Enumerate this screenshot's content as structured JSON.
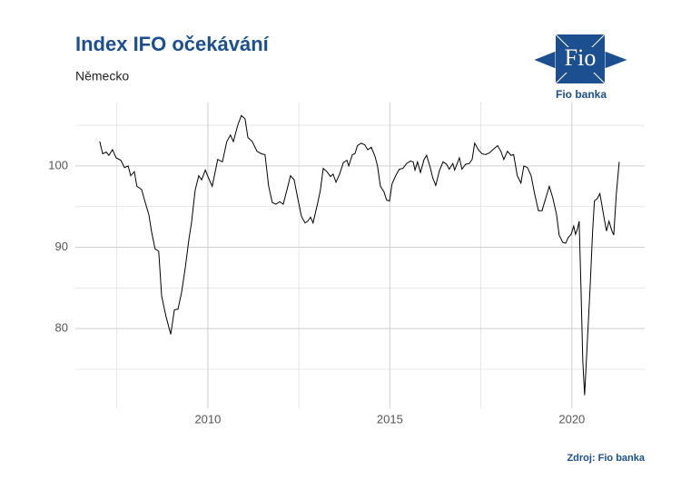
{
  "chart_data": {
    "type": "line",
    "title": "Index IFO očekávání",
    "subtitle": "Německo",
    "source": "Zdroj: Fio banka",
    "xlim": [
      2006.36,
      2022.0
    ],
    "xticks": [
      2010,
      2015,
      2020
    ],
    "xminor": [
      2007.5,
      2012.5,
      2017.5
    ],
    "ylim": [
      70.2,
      107.8
    ],
    "yticks": [
      80,
      90,
      100
    ],
    "yminor": [
      75,
      85,
      95,
      105
    ],
    "grid": true,
    "series": [
      {
        "name": "Index IFO očekávání",
        "color": "#000000",
        "x": [
          2007.03,
          2007.11,
          2007.21,
          2007.28,
          2007.38,
          2007.48,
          2007.61,
          2007.71,
          2007.81,
          2007.88,
          2007.98,
          2008.05,
          2008.18,
          2008.28,
          2008.38,
          2008.45,
          2008.55,
          2008.65,
          2008.73,
          2008.85,
          2008.98,
          2009.08,
          2009.18,
          2009.28,
          2009.38,
          2009.48,
          2009.55,
          2009.65,
          2009.75,
          2009.83,
          2009.93,
          2010.02,
          2010.12,
          2010.27,
          2010.4,
          2010.52,
          2010.62,
          2010.7,
          2010.82,
          2010.92,
          2011.02,
          2011.1,
          2011.22,
          2011.35,
          2011.47,
          2011.57,
          2011.67,
          2011.77,
          2011.87,
          2011.97,
          2012.07,
          2012.17,
          2012.27,
          2012.37,
          2012.47,
          2012.57,
          2012.67,
          2012.74,
          2012.82,
          2012.89,
          2013.02,
          2013.09,
          2013.17,
          2013.27,
          2013.37,
          2013.44,
          2013.52,
          2013.62,
          2013.72,
          2013.82,
          2013.87,
          2013.97,
          2014.04,
          2014.11,
          2014.21,
          2014.31,
          2014.39,
          2014.49,
          2014.59,
          2014.66,
          2014.74,
          2014.84,
          2014.91,
          2014.99,
          2015.06,
          2015.16,
          2015.26,
          2015.36,
          2015.46,
          2015.56,
          2015.64,
          2015.69,
          2015.76,
          2015.84,
          2015.94,
          2016.01,
          2016.11,
          2016.18,
          2016.26,
          2016.36,
          2016.46,
          2016.56,
          2016.63,
          2016.73,
          2016.78,
          2016.91,
          2016.98,
          2017.08,
          2017.18,
          2017.26,
          2017.33,
          2017.43,
          2017.53,
          2017.63,
          2017.73,
          2017.83,
          2017.96,
          2018.05,
          2018.13,
          2018.23,
          2018.33,
          2018.4,
          2018.5,
          2018.6,
          2018.68,
          2018.78,
          2018.88,
          2018.98,
          2019.08,
          2019.18,
          2019.28,
          2019.38,
          2019.48,
          2019.58,
          2019.65,
          2019.75,
          2019.83,
          2019.9,
          2019.98,
          2020.05,
          2020.1,
          2020.15,
          2020.2,
          2020.25,
          2020.3,
          2020.35,
          2020.42,
          2020.5,
          2020.57,
          2020.62,
          2020.7,
          2020.77,
          2020.87,
          2020.95,
          2021.02,
          2021.1,
          2021.15,
          2021.22,
          2021.3
        ],
        "values": [
          103.0,
          101.5,
          101.7,
          101.3,
          102.0,
          101.0,
          100.7,
          99.8,
          100.0,
          98.8,
          99.3,
          97.5,
          97.1,
          95.5,
          94.0,
          92.0,
          89.8,
          89.5,
          84.0,
          81.5,
          79.3,
          82.3,
          82.4,
          84.5,
          87.5,
          91.0,
          93.0,
          97.0,
          98.8,
          98.3,
          99.5,
          98.5,
          97.5,
          100.8,
          100.5,
          103.0,
          103.8,
          103.0,
          105.0,
          106.2,
          105.8,
          103.5,
          103.0,
          101.8,
          101.5,
          101.4,
          97.5,
          95.5,
          95.3,
          95.6,
          95.3,
          97.0,
          98.8,
          98.3,
          96.0,
          93.8,
          93.0,
          93.2,
          93.7,
          93.0,
          95.5,
          97.0,
          99.7,
          99.3,
          98.7,
          99.0,
          98.0,
          99.0,
          100.4,
          100.7,
          100.0,
          101.4,
          101.5,
          102.5,
          102.8,
          102.6,
          102.0,
          102.3,
          101.2,
          100.0,
          97.5,
          96.8,
          95.8,
          95.7,
          97.8,
          98.8,
          99.6,
          99.7,
          100.3,
          100.6,
          100.5,
          99.5,
          100.5,
          99.2,
          100.8,
          101.3,
          99.8,
          98.5,
          97.6,
          99.4,
          100.5,
          100.2,
          99.6,
          100.3,
          99.5,
          101.0,
          99.6,
          100.2,
          100.3,
          100.8,
          102.8,
          102.0,
          101.5,
          101.4,
          101.6,
          102.0,
          102.5,
          101.8,
          100.8,
          101.8,
          101.3,
          101.4,
          98.8,
          97.9,
          100.0,
          99.8,
          98.8,
          96.5,
          94.5,
          94.5,
          96.0,
          97.5,
          96.0,
          94.0,
          91.5,
          90.6,
          90.5,
          91.2,
          91.6,
          92.6,
          91.6,
          92.2,
          93.2,
          85.0,
          76.0,
          71.8,
          78.0,
          85.0,
          92.0,
          95.7,
          96.0,
          96.6,
          94.0,
          92.0,
          93.2,
          92.0,
          91.5,
          96.5,
          100.5
        ]
      }
    ]
  },
  "logo": {
    "mark": "Fio",
    "name": "Fio banka"
  }
}
